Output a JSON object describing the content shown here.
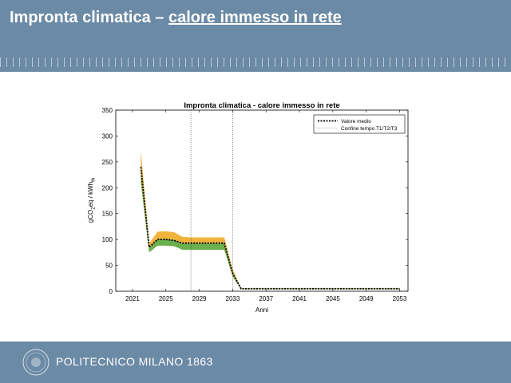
{
  "slide": {
    "title_prefix": "Impronta climatica – ",
    "title_underlined": "calore immesso in rete",
    "brand": "POLITECNICO MILANO 1863"
  },
  "colors": {
    "header": "#6b8aa6",
    "upper_band": "#f0b43c",
    "lower_band": "#6ab04c",
    "mean_line": "#000000"
  },
  "chart_data": {
    "type": "area",
    "title": "Impronta climatica - calore immesso in rete",
    "xlabel": "Anni",
    "ylabel": "gCO2eq / kWhth",
    "xlim": [
      2019,
      2054
    ],
    "ylim": [
      0,
      350
    ],
    "xticks": [
      2021,
      2025,
      2029,
      2033,
      2037,
      2041,
      2045,
      2049,
      2053
    ],
    "yticks": [
      0,
      50,
      100,
      150,
      200,
      250,
      300,
      350
    ],
    "grid": false,
    "legend_position": "top-right",
    "legend": [
      "Valore medio",
      "Confine tempo T1/T2/T3"
    ],
    "vlines": [
      2028,
      2033
    ],
    "x": [
      2022,
      2023,
      2024,
      2025,
      2026,
      2027,
      2028,
      2029,
      2030,
      2031,
      2032,
      2033,
      2034,
      2035,
      2053
    ],
    "series": [
      {
        "name": "Valore medio",
        "values": [
          240,
          85,
          100,
          100,
          98,
          93,
          93,
          93,
          93,
          93,
          93,
          35,
          5,
          5,
          5
        ]
      },
      {
        "band_upper": [
          272,
          92,
          115,
          116,
          114,
          105,
          104,
          104,
          104,
          104,
          104,
          42,
          6,
          6,
          6
        ],
        "band_middle": [
          230,
          83,
          100,
          101,
          99,
          92,
          92,
          92,
          92,
          92,
          92,
          33,
          5,
          5,
          5
        ],
        "band_lower": [
          210,
          75,
          88,
          88,
          87,
          80,
          80,
          80,
          80,
          80,
          80,
          28,
          4,
          4,
          4
        ]
      }
    ]
  }
}
